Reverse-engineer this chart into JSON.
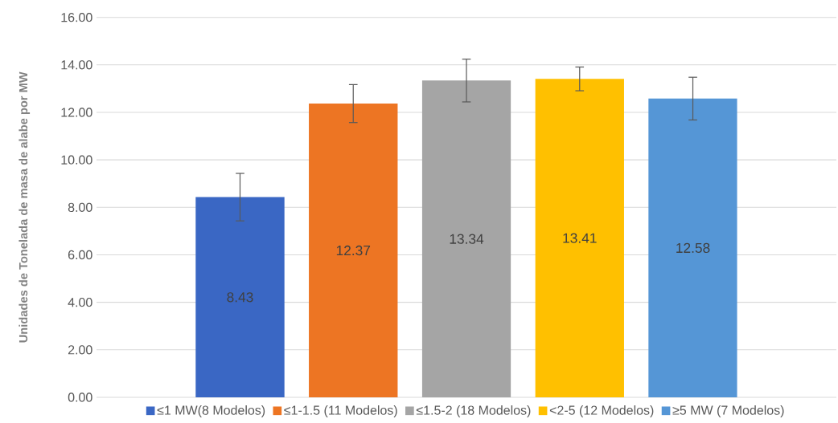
{
  "chart_data": {
    "type": "bar",
    "ylabel": "Unidades de Tonelada de masa de alabe por MW",
    "categories": [
      null
    ],
    "series": [
      {
        "name": "≤1 MW(8 Modelos)",
        "color": "#3a67c4",
        "values": [
          8.43
        ],
        "errors": [
          1.0
        ]
      },
      {
        "name": "≤1-1.5 (11 Modelos)",
        "color": "#ed7523",
        "values": [
          12.37
        ],
        "errors": [
          0.8
        ]
      },
      {
        "name": "≤1.5-2 (18 Modelos)",
        "color": "#a5a5a5",
        "values": [
          13.34
        ],
        "errors": [
          0.9
        ]
      },
      {
        "name": "<2-5 (12 Modelos)",
        "color": "#ffc000",
        "values": [
          13.41
        ],
        "errors": [
          0.5
        ]
      },
      {
        "name": "≥5 MW (7 Modelos)",
        "color": "#5596d6",
        "values": [
          12.58
        ],
        "errors": [
          0.9
        ]
      }
    ],
    "ylim": [
      0,
      16
    ],
    "yticks": [
      {
        "value": 0,
        "label": "0.00"
      },
      {
        "value": 2,
        "label": "2.00"
      },
      {
        "value": 4,
        "label": "4.00"
      },
      {
        "value": 6,
        "label": "6.00"
      },
      {
        "value": 8,
        "label": "8.00"
      },
      {
        "value": 10,
        "label": "10.00"
      },
      {
        "value": 12,
        "label": "12.00"
      },
      {
        "value": 14,
        "label": "14.00"
      },
      {
        "value": 16,
        "label": "16.00"
      }
    ],
    "grid": "y",
    "legend": "bottom",
    "data_labels": true
  }
}
